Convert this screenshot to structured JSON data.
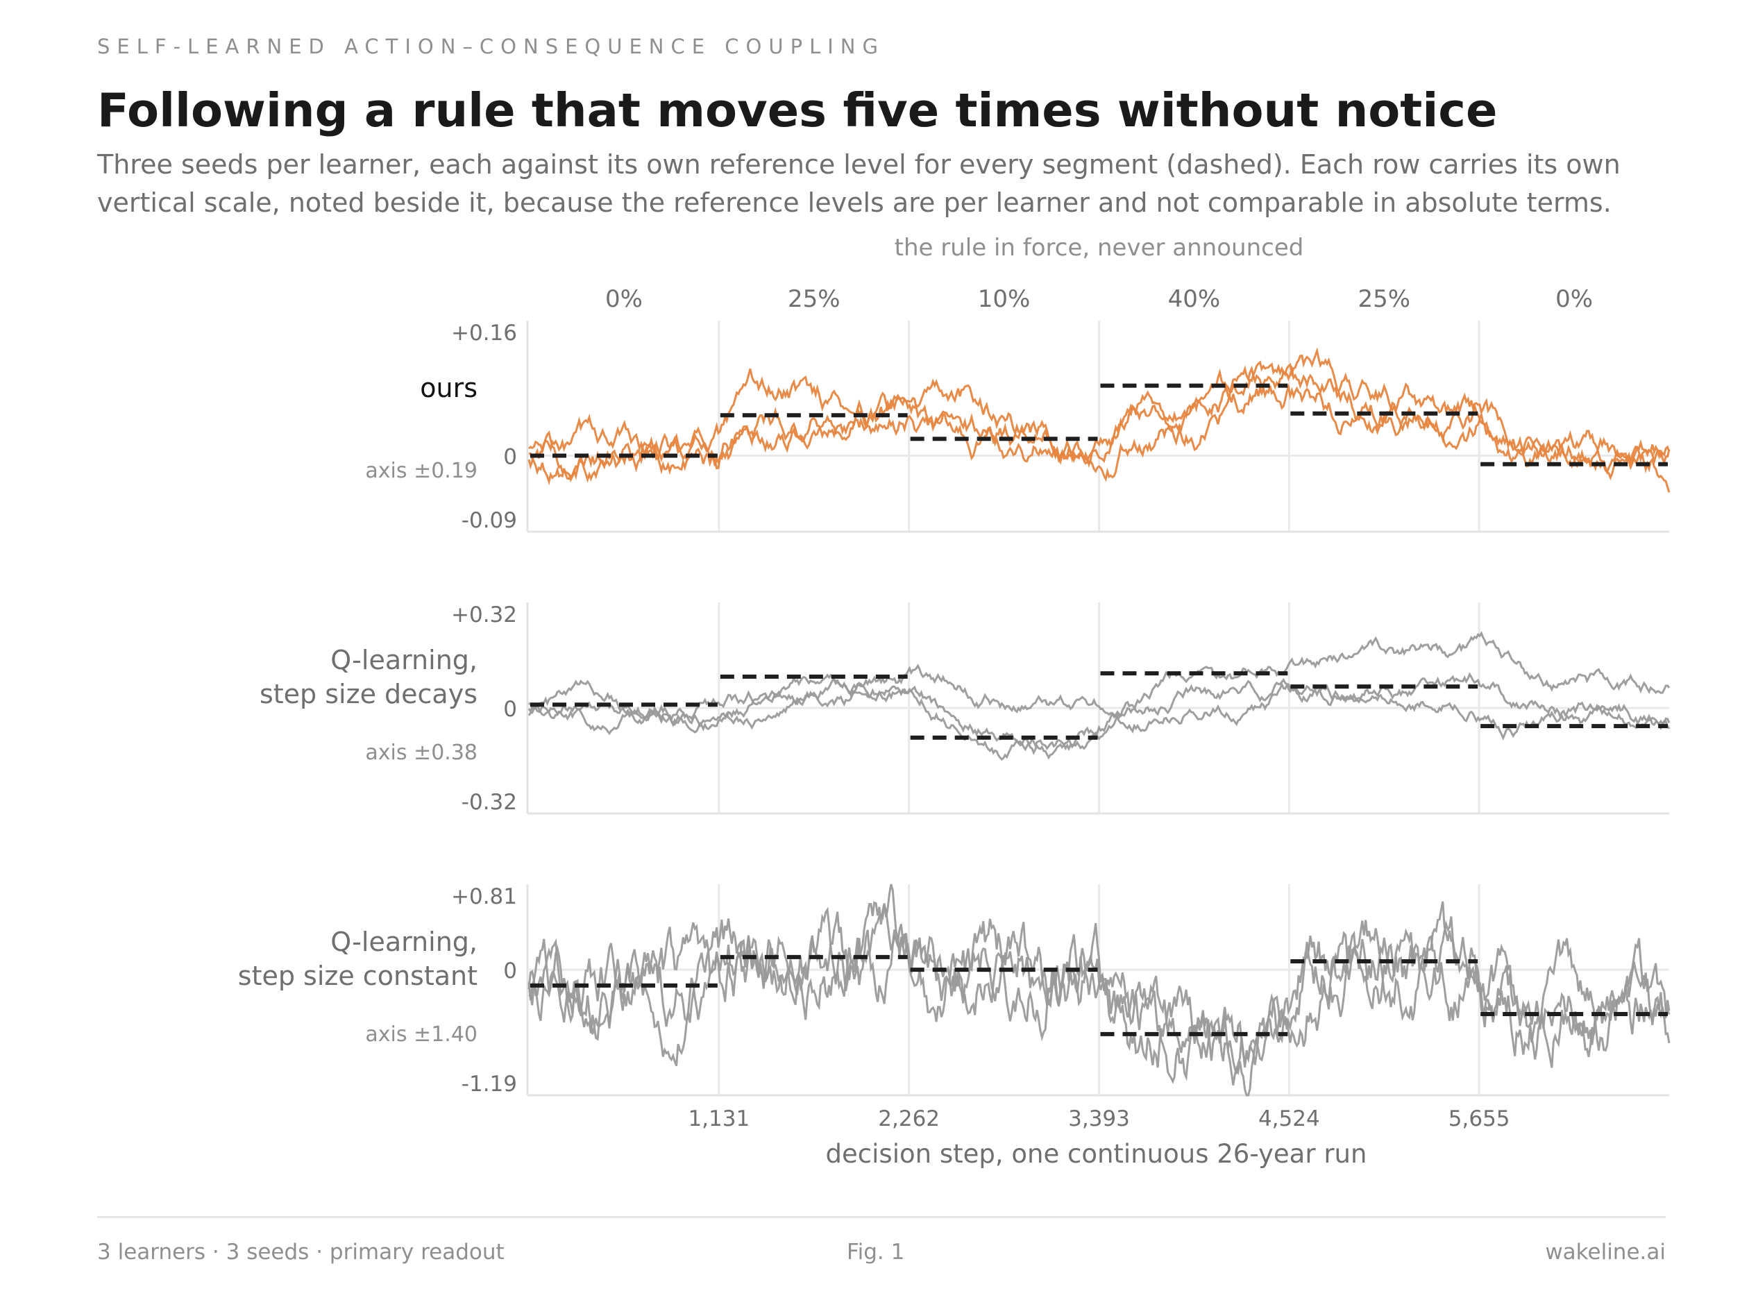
{
  "kicker": "SELF-LEARNED ACTION–CONSEQUENCE COUPLING",
  "title": "Following a rule that moves five times without notice",
  "subtitle": "Three seeds per learner, each against its own reference level for every segment (dashed). Each row carries its own vertical scale, noted beside it, because the reference levels are per learner and not comparable in absolute terms.",
  "footer": {
    "left": "3 learners · 3 seeds · primary readout",
    "center": "Fig. 1",
    "right": "wakeline.ai"
  },
  "chart_data": {
    "type": "line",
    "top_label": "the rule in force, never announced",
    "xlabel": "decision step, one continuous 26-year run",
    "xlim": [
      0,
      6786
    ],
    "x_ticks": [
      1131,
      2262,
      3393,
      4524,
      5655
    ],
    "x_tick_labels": [
      "1,131",
      "2,262",
      "3,393",
      "4,524",
      "5,655"
    ],
    "regimes": [
      "0%",
      "25%",
      "10%",
      "40%",
      "25%",
      "0%"
    ],
    "segment_bounds": [
      0,
      1131,
      2262,
      3393,
      4524,
      5655,
      6786
    ],
    "panels": [
      {
        "label": "ours",
        "color": "#e8853e",
        "label_color": "#111111",
        "axis_note": "axis ±0.19",
        "ytick_labels": [
          "+0.16",
          "0",
          "-0.09"
        ],
        "ylim": [
          -0.09,
          0.16
        ],
        "reference": [
          0.0,
          0.048,
          0.02,
          0.083,
          0.05,
          -0.01
        ],
        "seeds": 3,
        "trace_amplitude": 0.008,
        "seed_offsets": [
          0.0,
          -0.014,
          0.012
        ],
        "seed_lag": [
          180,
          300,
          420
        ]
      },
      {
        "label": "Q-learning,\nstep size decays",
        "color": "#9a9a9a",
        "label_color": "#6f6f6f",
        "axis_note": "axis ±0.38",
        "ytick_labels": [
          "+0.32",
          "0",
          "-0.32"
        ],
        "ylim": [
          -0.32,
          0.32
        ],
        "reference": [
          0.01,
          0.095,
          -0.09,
          0.105,
          0.065,
          -0.055
        ],
        "seeds": 3,
        "trace_amplitude": 0.012,
        "seed_offsets": [
          0.0,
          -0.04,
          0.035
        ],
        "seed_lag": [
          500,
          650,
          800
        ]
      },
      {
        "label": "Q-learning,\nstep size constant",
        "color": "#9a9a9a",
        "label_color": "#6f6f6f",
        "axis_note": "axis ±1.40",
        "ytick_labels": [
          "+0.81",
          "0",
          "-1.19"
        ],
        "ylim": [
          -1.19,
          0.81
        ],
        "reference": [
          -0.15,
          0.12,
          0.0,
          -0.61,
          0.08,
          -0.42
        ],
        "seeds": 3,
        "trace_amplitude": 0.16,
        "seed_offsets": [
          0.0,
          -0.12,
          0.12
        ],
        "seed_lag": [
          60,
          90,
          120
        ]
      }
    ]
  }
}
